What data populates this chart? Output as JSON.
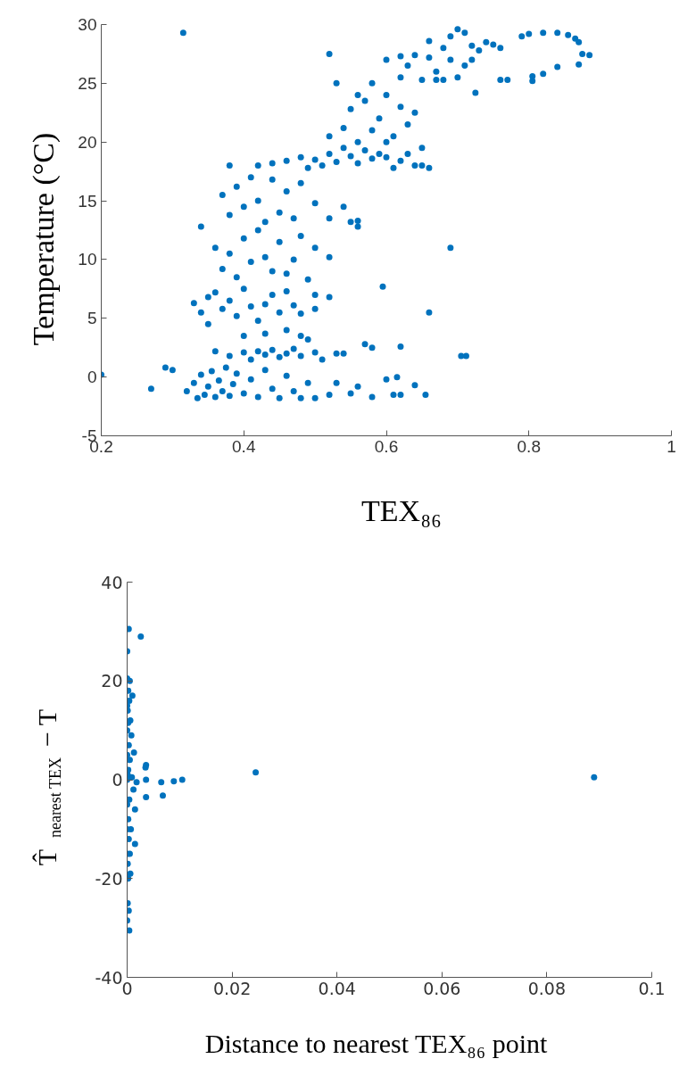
{
  "chart_data": [
    {
      "type": "scatter",
      "xlabel": "TEX₈₆",
      "ylabel": "Temperature (°C)",
      "color": "#0072bd",
      "marker": "circle",
      "xlim": [
        0.2,
        1
      ],
      "ylim": [
        -5,
        30
      ],
      "xticks": [
        0.2,
        0.4,
        0.6,
        0.8,
        1
      ],
      "yticks": [
        -5,
        0,
        5,
        10,
        15,
        20,
        25,
        30
      ],
      "x": [
        0.2,
        0.27,
        0.315,
        0.29,
        0.3,
        0.32,
        0.33,
        0.335,
        0.34,
        0.345,
        0.35,
        0.355,
        0.36,
        0.365,
        0.37,
        0.375,
        0.38,
        0.385,
        0.39,
        0.4,
        0.41,
        0.42,
        0.43,
        0.44,
        0.45,
        0.46,
        0.47,
        0.48,
        0.49,
        0.5,
        0.52,
        0.53,
        0.55,
        0.56,
        0.58,
        0.6,
        0.61,
        0.64,
        0.655,
        0.54,
        0.57,
        0.58,
        0.62,
        0.615,
        0.62,
        0.36,
        0.38,
        0.4,
        0.41,
        0.42,
        0.43,
        0.44,
        0.45,
        0.46,
        0.47,
        0.48,
        0.49,
        0.5,
        0.51,
        0.53,
        0.4,
        0.43,
        0.46,
        0.48,
        0.33,
        0.34,
        0.35,
        0.35,
        0.36,
        0.37,
        0.38,
        0.39,
        0.4,
        0.41,
        0.42,
        0.43,
        0.44,
        0.45,
        0.46,
        0.47,
        0.48,
        0.5,
        0.52,
        0.5,
        0.34,
        0.36,
        0.37,
        0.38,
        0.39,
        0.4,
        0.41,
        0.42,
        0.43,
        0.44,
        0.45,
        0.46,
        0.47,
        0.48,
        0.5,
        0.52,
        0.49,
        0.37,
        0.38,
        0.39,
        0.4,
        0.41,
        0.42,
        0.43,
        0.44,
        0.45,
        0.46,
        0.47,
        0.48,
        0.5,
        0.52,
        0.54,
        0.55,
        0.56,
        0.38,
        0.42,
        0.44,
        0.46,
        0.48,
        0.49,
        0.5,
        0.51,
        0.52,
        0.53,
        0.54,
        0.55,
        0.56,
        0.57,
        0.58,
        0.59,
        0.6,
        0.61,
        0.62,
        0.63,
        0.64,
        0.65,
        0.52,
        0.54,
        0.55,
        0.56,
        0.57,
        0.58,
        0.59,
        0.6,
        0.61,
        0.62,
        0.6,
        0.58,
        0.56,
        0.53,
        0.52,
        0.62,
        0.63,
        0.64,
        0.65,
        0.66,
        0.6,
        0.62,
        0.64,
        0.66,
        0.67,
        0.68,
        0.69,
        0.7,
        0.71,
        0.69,
        0.7,
        0.71,
        0.72,
        0.73,
        0.74,
        0.75,
        0.76,
        0.65,
        0.67,
        0.68,
        0.725,
        0.66,
        0.63,
        0.72,
        0.79,
        0.8,
        0.82,
        0.84,
        0.855,
        0.865,
        0.87,
        0.875,
        0.885,
        0.87,
        0.84,
        0.82,
        0.805,
        0.805,
        0.76,
        0.77,
        0.69,
        0.66,
        0.705,
        0.712,
        0.595,
        0.56
      ],
      "values": [
        0.2,
        -1,
        29.3,
        0.8,
        0.6,
        -1.2,
        -0.5,
        -1.8,
        0.2,
        -1.5,
        -0.8,
        0.5,
        -1.7,
        -0.3,
        -1.2,
        0.8,
        -1.6,
        -0.6,
        0.3,
        -1.4,
        -0.2,
        -1.7,
        0.6,
        -1.0,
        -1.8,
        0.1,
        -1.2,
        -1.8,
        -0.5,
        -1.8,
        -1.5,
        -0.5,
        -1.4,
        -0.8,
        -1.7,
        -0.2,
        -1.5,
        -0.7,
        -1.5,
        2,
        2.8,
        2.5,
        2.6,
        0,
        -1.5,
        2.2,
        1.8,
        2.1,
        1.5,
        2.2,
        1.9,
        2.3,
        1.7,
        2.0,
        2.4,
        1.8,
        3.2,
        2.1,
        1.5,
        2.0,
        3.5,
        3.7,
        4.0,
        3.5,
        6.3,
        5.5,
        6.8,
        4.5,
        7.2,
        5.8,
        6.5,
        5.2,
        7.5,
        6.0,
        4.8,
        6.2,
        7.0,
        5.5,
        7.3,
        6.1,
        5.4,
        7.0,
        6.8,
        5.8,
        12.8,
        11.0,
        9.2,
        10.5,
        8.5,
        11.8,
        9.8,
        12.5,
        10.2,
        9.0,
        11.5,
        8.8,
        10.0,
        12.0,
        11.0,
        10.2,
        8.3,
        15.5,
        13.8,
        16.2,
        14.5,
        17.0,
        15.0,
        13.2,
        16.8,
        14.0,
        15.8,
        13.5,
        16.5,
        14.8,
        13.5,
        14.5,
        13.2,
        12.8,
        18.0,
        18.0,
        18.2,
        18.4,
        18.7,
        17.8,
        18.5,
        18.0,
        19.0,
        18.3,
        19.5,
        18.8,
        18.2,
        19.3,
        18.6,
        19.0,
        18.7,
        17.8,
        18.4,
        19.0,
        18.0,
        18.0,
        20.5,
        21.2,
        22.8,
        20.0,
        23.5,
        21.0,
        22.0,
        24.0,
        20.5,
        23.0,
        20.0,
        25.0,
        24.0,
        25.0,
        27.5,
        25.5,
        21.5,
        22.5,
        19.5,
        17.8,
        27.0,
        27.3,
        27.4,
        27.2,
        26.0,
        28.0,
        29.0,
        29.6,
        29.3,
        27.0,
        25.5,
        26.5,
        28.2,
        27.8,
        28.5,
        28.3,
        28.0,
        25.3,
        25.3,
        25.3,
        24.2,
        28.6,
        26.5,
        27.0,
        29.0,
        29.2,
        29.3,
        29.3,
        29.1,
        28.8,
        28.5,
        27.5,
        27.4,
        26.6,
        26.4,
        25.8,
        25.6,
        25.2,
        25.3,
        25.3,
        11.0,
        5.5,
        1.8,
        1.8,
        7.7,
        13.3
      ]
    },
    {
      "type": "scatter",
      "xlabel": "Distance to nearest TEX₈₆ point",
      "ylabel": "T̂$_{nearest TEX}$ − T",
      "color": "#0072bd",
      "marker": "circle",
      "xlim": [
        0,
        0.1
      ],
      "ylim": [
        -40,
        40
      ],
      "xticks": [
        0,
        0.02,
        0.04,
        0.06,
        0.08,
        0.1
      ],
      "yticks": [
        -40,
        -20,
        0,
        20,
        40
      ],
      "x": [
        0.0003,
        0.0026,
        0,
        0,
        0.0005,
        0.0002,
        0.001,
        0.0004,
        0.0001,
        0.0006,
        0.0002,
        0.0008,
        0.0003,
        0.0013,
        0.0005,
        0.0002,
        0.0036,
        0.0035,
        0.0001,
        0.0009,
        0.0036,
        0.0018,
        0.0065,
        0.0089,
        0.0105,
        0.0245,
        0.089,
        0.0068,
        0.0036,
        0.0012,
        0.0004,
        0.0015,
        0.0002,
        0.0007,
        0.0015,
        0.0003,
        0.0005,
        0.0001,
        0.0006,
        0.0002,
        0.0001,
        0.0003,
        0,
        0.0004,
        0,
        0,
        0,
        0,
        0,
        0,
        0
      ],
      "values": [
        30.5,
        29,
        26,
        20.5,
        20,
        18,
        17,
        16,
        14,
        12,
        11.5,
        9,
        7,
        5.5,
        4,
        2,
        3,
        2.5,
        1,
        0.5,
        0,
        -0.5,
        -0.5,
        -0.3,
        0,
        1.5,
        0.5,
        -3.2,
        -3.5,
        -2,
        -4,
        -6,
        -8,
        -10,
        -13,
        -12,
        -15,
        -17,
        -19,
        -20,
        -25,
        -26.5,
        -28.5,
        -30.5,
        5,
        -5,
        0,
        10,
        -10,
        15,
        -15
      ]
    }
  ]
}
